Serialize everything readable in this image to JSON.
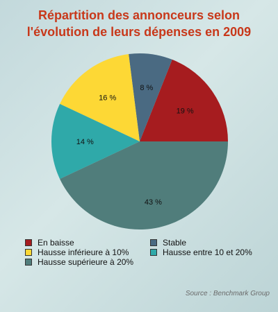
{
  "chart_data": {
    "type": "pie",
    "title_line1": "Répartition des annonceurs selon",
    "title_line2": "l'évolution de leurs dépenses en 2009",
    "slices": [
      {
        "label": "En baisse",
        "value": 19,
        "display": "19 %",
        "color": "#a61c1f"
      },
      {
        "label": "Stable",
        "value": 8,
        "display": "8 %",
        "color": "#4a6a82"
      },
      {
        "label": "Hausse inférieure à 10%",
        "value": 16,
        "display": "16 %",
        "color": "#fdd835"
      },
      {
        "label": "Hausse entre 10 et 20%",
        "value": 14,
        "display": "14 %",
        "color": "#2fa9a9"
      },
      {
        "label": "Hausse supérieure à 20%",
        "value": 43,
        "display": "43 %",
        "color": "#507d7b"
      }
    ],
    "legend_placement": "bottom",
    "source": "Source : Benchmark Group"
  }
}
